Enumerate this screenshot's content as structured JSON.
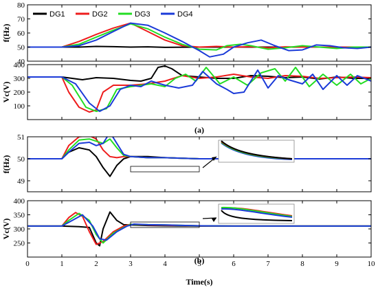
{
  "colors": {
    "DG1": "#000000",
    "DG2": "#ee1c1c",
    "DG3": "#22dd22",
    "DG4": "#1a3ad8"
  },
  "legend": [
    "DG1",
    "DG2",
    "DG3",
    "DG4"
  ],
  "captions": [
    "(a)",
    "(b)"
  ],
  "chart_data": [
    {
      "type": "line",
      "id": "a-f",
      "ylabel": "f(Hz)",
      "xlim": [
        0,
        10
      ],
      "ylim": [
        40,
        80
      ],
      "yticks": [
        40,
        50,
        60,
        70,
        80
      ],
      "xticks": [
        0,
        1,
        2,
        3,
        4,
        5,
        6,
        7,
        8,
        9,
        10
      ],
      "show_x_tick_labels": false,
      "legend": "top-left",
      "series": [
        {
          "name": "DG1",
          "x": [
            0,
            1,
            1.5,
            2,
            2.5,
            3,
            3.5,
            4,
            5,
            6,
            7,
            8,
            9,
            10
          ],
          "y": [
            50,
            50,
            50,
            50.5,
            50.3,
            50,
            50.2,
            49.8,
            50,
            50,
            50,
            50,
            50,
            50
          ]
        },
        {
          "name": "DG2",
          "x": [
            0,
            1,
            1.5,
            2,
            2.5,
            3,
            3.5,
            4,
            4.5,
            5,
            5.5,
            6,
            6.5,
            7,
            7.5,
            8,
            8.5,
            9,
            9.5,
            10
          ],
          "y": [
            50,
            50,
            54,
            59,
            63.5,
            67,
            61,
            55,
            51,
            50,
            50.5,
            50,
            50.3,
            49.5,
            50.2,
            50,
            50,
            50,
            50,
            50
          ]
        },
        {
          "name": "DG3",
          "x": [
            0,
            1,
            1.5,
            2,
            2.5,
            3,
            3.5,
            4,
            4.5,
            5,
            5.5,
            5.8,
            6.2,
            6.5,
            7,
            7.5,
            8,
            8.5,
            9,
            9.5,
            10
          ],
          "y": [
            50,
            50,
            52,
            57,
            62,
            66.5,
            63,
            57,
            52,
            48.5,
            48,
            51,
            52,
            51,
            48.5,
            49.5,
            51,
            50,
            49,
            50,
            50
          ]
        },
        {
          "name": "DG4",
          "x": [
            0,
            1,
            1.5,
            2,
            2.5,
            3,
            3.5,
            4,
            4.5,
            5,
            5.3,
            5.7,
            6,
            6.4,
            6.8,
            7.2,
            7.6,
            8,
            8.4,
            8.8,
            9.2,
            9.6,
            10
          ],
          "y": [
            50,
            50,
            51,
            55,
            61,
            67,
            65.5,
            60,
            54,
            47.5,
            43,
            45,
            50,
            53,
            55,
            51,
            47.5,
            48,
            51.5,
            51,
            49.5,
            49,
            50
          ]
        }
      ]
    },
    {
      "type": "line",
      "id": "a-vc",
      "ylabel": "Vc(V)",
      "xlim": [
        0,
        10
      ],
      "ylim": [
        0,
        400
      ],
      "yticks": [
        100,
        200,
        300,
        400
      ],
      "xticks": [
        0,
        1,
        2,
        3,
        4,
        5,
        6,
        7,
        8,
        9,
        10
      ],
      "show_x_tick_labels": false,
      "series": [
        {
          "name": "DG1",
          "x": [
            0,
            1,
            1.3,
            1.6,
            2,
            2.5,
            3,
            3.3,
            3.6,
            3.8,
            4,
            4.2,
            4.5,
            5,
            5.5,
            6,
            6.5,
            7,
            7.5,
            8,
            8.5,
            9,
            9.5,
            10
          ],
          "y": [
            310,
            310,
            300,
            290,
            305,
            300,
            285,
            280,
            300,
            380,
            390,
            370,
            320,
            310,
            300,
            300,
            320,
            315,
            305,
            310,
            295,
            310,
            300,
            300
          ]
        },
        {
          "name": "DG2",
          "x": [
            0,
            1,
            1.2,
            1.5,
            1.8,
            2,
            2.2,
            2.5,
            3,
            3.5,
            4,
            4.5,
            5,
            5.5,
            6,
            6.5,
            7,
            7.5,
            8,
            8.5,
            9,
            9.5,
            10
          ],
          "y": [
            310,
            310,
            200,
            90,
            55,
            70,
            200,
            250,
            250,
            260,
            280,
            320,
            300,
            310,
            330,
            310,
            300,
            320,
            315,
            300,
            305,
            310,
            305
          ]
        },
        {
          "name": "DG3",
          "x": [
            0,
            1,
            1.3,
            1.7,
            2,
            2.3,
            2.6,
            3,
            3.3,
            3.6,
            4,
            4.3,
            4.6,
            4.9,
            5.2,
            5.6,
            6,
            6.4,
            6.8,
            7.2,
            7.5,
            7.8,
            8.2,
            8.6,
            9,
            9.4,
            9.7,
            10
          ],
          "y": [
            310,
            310,
            250,
            90,
            60,
            80,
            220,
            240,
            250,
            260,
            240,
            300,
            330,
            280,
            380,
            260,
            310,
            250,
            340,
            370,
            280,
            380,
            240,
            330,
            250,
            330,
            260,
            300
          ]
        },
        {
          "name": "DG4",
          "x": [
            0,
            1,
            1.4,
            1.8,
            2.1,
            2.4,
            2.7,
            3,
            3.3,
            3.6,
            4,
            4.4,
            4.8,
            5.1,
            5.5,
            5.8,
            6,
            6.3,
            6.7,
            7,
            7.3,
            7.6,
            8,
            8.3,
            8.6,
            9,
            9.3,
            9.6,
            10
          ],
          "y": [
            310,
            310,
            260,
            120,
            60,
            100,
            220,
            250,
            240,
            280,
            250,
            230,
            250,
            350,
            260,
            220,
            190,
            200,
            360,
            230,
            320,
            290,
            260,
            330,
            220,
            320,
            250,
            320,
            280
          ]
        }
      ]
    },
    {
      "type": "line",
      "id": "b-f",
      "ylabel": "f(Hz)",
      "xlim": [
        0,
        10
      ],
      "ylim": [
        48.5,
        51
      ],
      "yticks": [
        49,
        50,
        51
      ],
      "xticks": [
        0,
        1,
        2,
        3,
        4,
        5,
        6,
        7,
        8,
        9,
        10
      ],
      "show_x_tick_labels": false,
      "series": [
        {
          "name": "DG1",
          "x": [
            0,
            1,
            1.2,
            1.5,
            1.8,
            2,
            2.2,
            2.4,
            2.6,
            2.8,
            3,
            3.5,
            4,
            5,
            6,
            7,
            8,
            9,
            10
          ],
          "y": [
            50,
            50,
            50.3,
            50.5,
            50.4,
            50.1,
            49.6,
            49.2,
            49.7,
            50,
            50.1,
            50.1,
            50.05,
            50,
            50,
            50,
            50,
            50,
            50
          ]
        },
        {
          "name": "DG2",
          "x": [
            0,
            1,
            1.2,
            1.5,
            1.8,
            2,
            2.2,
            2.4,
            2.6,
            2.8,
            3,
            3.5,
            4,
            5,
            6,
            7,
            8,
            9,
            10
          ],
          "y": [
            50,
            50,
            50.6,
            51,
            51.05,
            50.9,
            50.4,
            50.1,
            50.05,
            50.1,
            50.1,
            50.05,
            50.05,
            50,
            50,
            50,
            50,
            50,
            50
          ]
        },
        {
          "name": "DG3",
          "x": [
            0,
            1,
            1.2,
            1.5,
            1.8,
            2,
            2.2,
            2.4,
            2.6,
            2.8,
            3,
            3.5,
            4,
            5,
            6,
            7,
            8,
            9,
            10
          ],
          "y": [
            50,
            50,
            50.4,
            50.85,
            50.9,
            50.8,
            50.7,
            50.9,
            50.5,
            50.15,
            50.1,
            50.05,
            50.05,
            50,
            50,
            50,
            50,
            50,
            50
          ]
        },
        {
          "name": "DG4",
          "x": [
            0,
            1,
            1.2,
            1.5,
            1.8,
            2,
            2.2,
            2.4,
            2.6,
            2.8,
            3,
            3.5,
            4,
            5,
            6,
            7,
            8,
            9,
            10
          ],
          "y": [
            50,
            50,
            50.3,
            50.7,
            50.75,
            50.6,
            50.7,
            51.2,
            50.7,
            50.2,
            50.1,
            50.05,
            50.05,
            50,
            50,
            50,
            50,
            50,
            50
          ]
        }
      ]
    },
    {
      "type": "line",
      "id": "b-vc",
      "ylabel": "Vc(V)",
      "xlim": [
        0,
        10
      ],
      "ylim": [
        200,
        400
      ],
      "yticks": [
        250,
        300,
        350,
        400
      ],
      "xticks": [
        0,
        1,
        2,
        3,
        4,
        5,
        6,
        7,
        8,
        9,
        10
      ],
      "show_x_tick_labels": true,
      "xlabel": "Time(s)",
      "series": [
        {
          "name": "DG1",
          "x": [
            0,
            1,
            1.5,
            1.8,
            2,
            2.1,
            2.2,
            2.4,
            2.6,
            2.8,
            3,
            3.5,
            4,
            5,
            6,
            7,
            8,
            9,
            10
          ],
          "y": [
            310,
            310,
            308,
            305,
            250,
            240,
            300,
            360,
            330,
            315,
            314,
            312,
            311,
            310,
            310,
            310,
            310,
            310,
            310
          ]
        },
        {
          "name": "DG2",
          "x": [
            0,
            1,
            1.2,
            1.4,
            1.6,
            1.8,
            2,
            2.2,
            2.5,
            2.8,
            3,
            3.5,
            4,
            5,
            6,
            7,
            8,
            9,
            10
          ],
          "y": [
            310,
            310,
            340,
            358,
            345,
            290,
            245,
            255,
            290,
            310,
            316,
            314,
            313,
            311,
            310,
            310,
            310,
            310,
            310
          ]
        },
        {
          "name": "DG3",
          "x": [
            0,
            1,
            1.2,
            1.5,
            1.8,
            2,
            2.2,
            2.5,
            2.8,
            3,
            3.5,
            4,
            5,
            6,
            7,
            8,
            9,
            10
          ],
          "y": [
            310,
            310,
            330,
            355,
            330,
            280,
            250,
            285,
            305,
            316,
            315,
            314,
            311,
            310,
            310,
            310,
            310,
            310
          ]
        },
        {
          "name": "DG4",
          "x": [
            0,
            1,
            1.3,
            1.6,
            1.9,
            2.1,
            2.3,
            2.6,
            2.9,
            3.1,
            3.5,
            4,
            5,
            6,
            7,
            8,
            9,
            10
          ],
          "y": [
            310,
            310,
            330,
            350,
            310,
            265,
            260,
            290,
            310,
            317,
            315,
            314,
            311,
            310,
            310,
            310,
            310,
            310
          ]
        }
      ]
    }
  ]
}
